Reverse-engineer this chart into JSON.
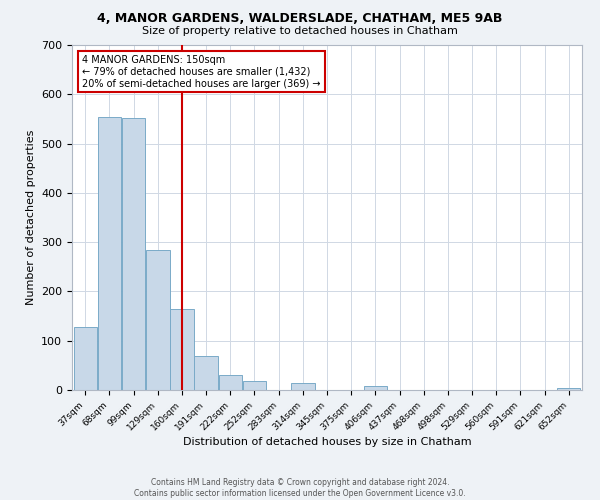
{
  "title": "4, MANOR GARDENS, WALDERSLADE, CHATHAM, ME5 9AB",
  "subtitle": "Size of property relative to detached houses in Chatham",
  "bar_labels": [
    "37sqm",
    "68sqm",
    "99sqm",
    "129sqm",
    "160sqm",
    "191sqm",
    "222sqm",
    "252sqm",
    "283sqm",
    "314sqm",
    "345sqm",
    "375sqm",
    "406sqm",
    "437sqm",
    "468sqm",
    "498sqm",
    "529sqm",
    "560sqm",
    "591sqm",
    "621sqm",
    "652sqm"
  ],
  "bar_heights": [
    128,
    554,
    551,
    285,
    165,
    68,
    30,
    18,
    0,
    15,
    0,
    0,
    8,
    0,
    0,
    0,
    0,
    0,
    0,
    0,
    5
  ],
  "bar_color": "#c8d8e8",
  "bar_edge_color": "#7aaac8",
  "vline_color": "#cc0000",
  "ylabel": "Number of detached properties",
  "xlabel": "Distribution of detached houses by size in Chatham",
  "ylim": [
    0,
    700
  ],
  "yticks": [
    0,
    100,
    200,
    300,
    400,
    500,
    600,
    700
  ],
  "annotation_title": "4 MANOR GARDENS: 150sqm",
  "annotation_line1": "← 79% of detached houses are smaller (1,432)",
  "annotation_line2": "20% of semi-detached houses are larger (369) →",
  "annotation_box_color": "#cc0000",
  "footer_line1": "Contains HM Land Registry data © Crown copyright and database right 2024.",
  "footer_line2": "Contains public sector information licensed under the Open Government Licence v3.0.",
  "background_color": "#eef2f6",
  "plot_bg_color": "#ffffff",
  "grid_color": "#d0d8e4"
}
